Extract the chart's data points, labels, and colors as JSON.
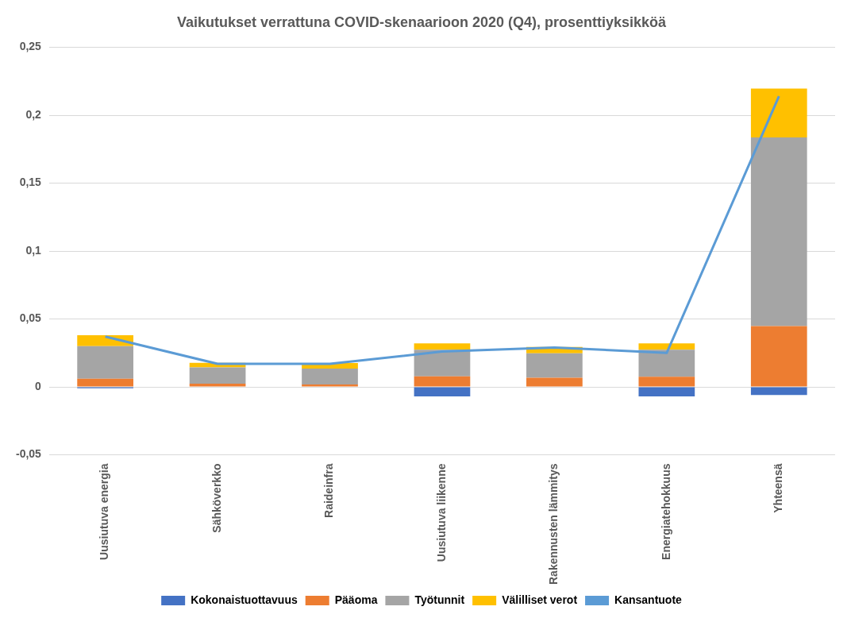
{
  "chart_data": {
    "type": "bar",
    "title": "Vaikutukset verrattuna COVID-skenaarioon 2020 (Q4), prosenttiyksikköä",
    "stacked": true,
    "grid": "y",
    "legend": "bottom",
    "categories": [
      "Uusiutuva energia",
      "Sähköverkko",
      "Raideinfra",
      "Uusiutuva liikenne",
      "Rakennusten lämmitys",
      "Energiatehokkuus",
      "Yhteensä"
    ],
    "ylim": [
      -0.05,
      0.25
    ],
    "yticks": [
      {
        "value": -0.05,
        "label": "-0,05"
      },
      {
        "value": 0,
        "label": "0"
      },
      {
        "value": 0.05,
        "label": "0,05"
      },
      {
        "value": 0.1,
        "label": "0,1"
      },
      {
        "value": 0.15,
        "label": "0,15"
      },
      {
        "value": 0.2,
        "label": "0,2"
      },
      {
        "value": 0.25,
        "label": "0,25"
      }
    ],
    "series": [
      {
        "name": "Kokonaistuottavuus",
        "color": "#4472c4",
        "values": [
          -0.001,
          null,
          null,
          -0.007,
          null,
          -0.007,
          -0.006
        ]
      },
      {
        "name": "Pääoma",
        "color": "#ed7d31",
        "values": [
          0.006,
          0.0023,
          0.0017,
          0.0078,
          0.0067,
          0.0074,
          0.0447
        ]
      },
      {
        "name": "Työtunnit",
        "color": "#a5a5a5",
        "values": [
          0.024,
          0.012,
          0.0118,
          0.0195,
          0.018,
          0.02,
          0.139
        ]
      },
      {
        "name": "Välilliset verot",
        "color": "#ffc000",
        "values": [
          0.008,
          0.0034,
          0.004,
          0.0047,
          0.0047,
          0.0047,
          0.036
        ]
      },
      {
        "name": "Kansantuote",
        "type": "line",
        "color": "#5b9bd5",
        "marker": "none",
        "values": [
          0.037,
          0.017,
          0.017,
          0.026,
          0.029,
          0.025,
          0.214
        ]
      }
    ]
  }
}
